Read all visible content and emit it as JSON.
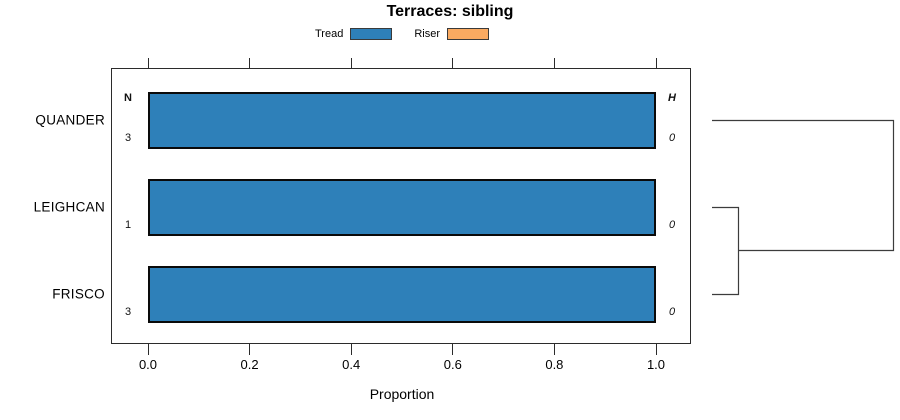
{
  "title": "Terraces: sibling",
  "legend": {
    "position": "top",
    "items": [
      {
        "label": "Tread",
        "color": "#2E80B9"
      },
      {
        "label": "Riser",
        "color": "#FAAA61"
      }
    ]
  },
  "chart_data": {
    "type": "bar",
    "orientation": "horizontal",
    "stacked": true,
    "title": "Terraces: sibling",
    "xlabel": "Proportion",
    "xlim": [
      0.0,
      1.0
    ],
    "x_ticks": [
      "0.0",
      "0.2",
      "0.4",
      "0.6",
      "0.8",
      "1.0"
    ],
    "grid": false,
    "legend_position": "top",
    "categories": [
      "QUANDER",
      "LEIGHCAN",
      "FRISCO"
    ],
    "series": [
      {
        "name": "Tread",
        "color": "#2E80B9",
        "values": [
          1.0,
          1.0,
          1.0
        ]
      },
      {
        "name": "Riser",
        "color": "#FAAA61",
        "values": [
          0.0,
          0.0,
          0.0
        ]
      }
    ],
    "left_annotation": {
      "header": "N",
      "values": [
        "3",
        "1",
        "3"
      ]
    },
    "right_annotation": {
      "header": "H",
      "values": [
        "0",
        "0",
        "0"
      ]
    },
    "dendrogram": {
      "newick": "(QUANDER,(LEIGHCAN,FRISCO));",
      "merge_order": [
        [
          "LEIGHCAN",
          "FRISCO"
        ],
        [
          "QUANDER",
          "(LEIGHCAN,FRISCO)"
        ]
      ]
    }
  }
}
